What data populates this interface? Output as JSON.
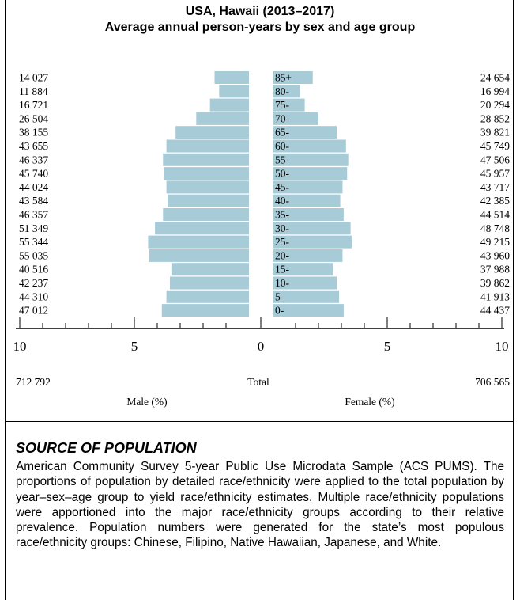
{
  "chart_data": {
    "type": "bar",
    "title": "USA, Hawaii (2013–2017)",
    "subtitle": "Average annual person-years by sex and age group",
    "categories": [
      "85+",
      "80-",
      "75-",
      "70-",
      "65-",
      "60-",
      "55-",
      "50-",
      "45-",
      "40-",
      "35-",
      "30-",
      "25-",
      "20-",
      "15-",
      "10-",
      "5-",
      "0-"
    ],
    "series": [
      {
        "name": "Male (%)",
        "counts": [
          "14 027",
          "11 884",
          "16 721",
          "26 504",
          "38 155",
          "43 655",
          "46 337",
          "45 740",
          "44 024",
          "43 584",
          "46 357",
          "51 349",
          "55 344",
          "55 035",
          "40 516",
          "42 237",
          "44 310",
          "47 012"
        ],
        "values": [
          1.5,
          1.3,
          1.7,
          2.3,
          3.2,
          3.6,
          3.75,
          3.7,
          3.6,
          3.55,
          3.75,
          4.1,
          4.4,
          4.35,
          3.35,
          3.45,
          3.6,
          3.8
        ]
      },
      {
        "name": "Female (%)",
        "counts": [
          "24 654",
          "16 994",
          "20 294",
          "28 852",
          "39 821",
          "45 749",
          "47 506",
          "45 957",
          "43 717",
          "42 385",
          "44 514",
          "48 748",
          "49 215",
          "43 960",
          "37 988",
          "39 862",
          "41 913",
          "44 437"
        ],
        "values": [
          1.75,
          1.2,
          1.4,
          2.0,
          2.8,
          3.2,
          3.3,
          3.25,
          3.05,
          2.95,
          3.1,
          3.4,
          3.45,
          3.05,
          2.65,
          2.8,
          2.9,
          3.1
        ]
      }
    ],
    "xlim": [
      0,
      10
    ],
    "x_ticks": [
      "10",
      "5",
      "0",
      "5",
      "10"
    ],
    "total_label": "Total",
    "total_male": "712 792",
    "total_female": "706 565",
    "xlabel_male": "Male (%)",
    "xlabel_female": "Female (%)",
    "bar_color": "#a7cbd7"
  },
  "source": {
    "heading": "SOURCE OF POPULATION",
    "text": "American Community Survey 5-year Public Use Microdata Sample (ACS PUMS). The proportions of population by detailed race/ethnicity were applied to the total population by year–sex–age group to yield race/ethnicity estimates. Multiple race/ethnicity populations were apportioned into the major race/ethnicity groups according to their relative prevalence. Population numbers were generated for the state’s most populous race/ethnicity groups: Chinese, Filipino, Native Hawaiian, Japanese, and White."
  }
}
